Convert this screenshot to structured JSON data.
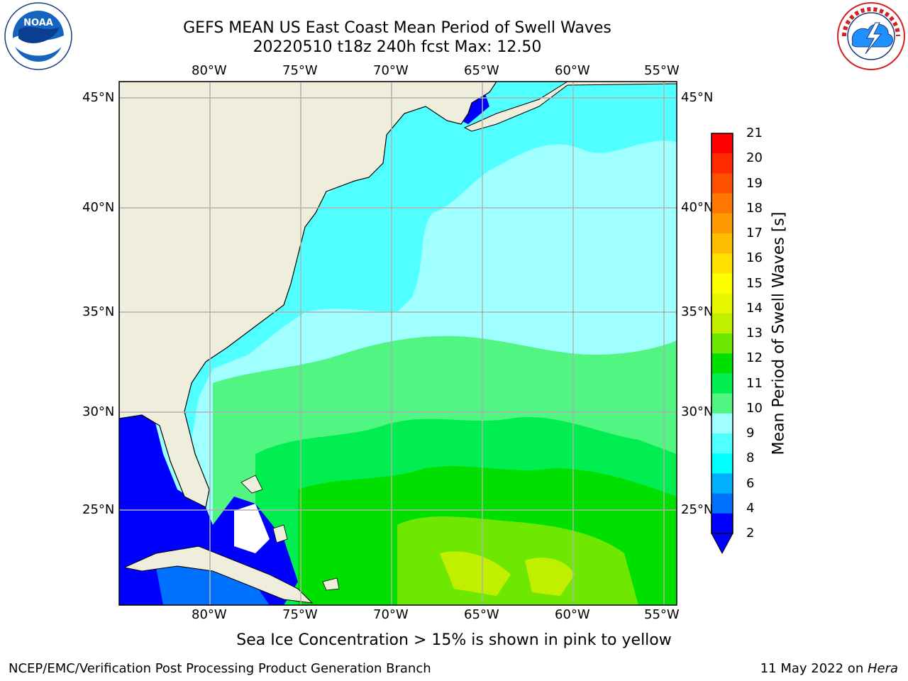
{
  "header": {
    "title_line1": "GEFS MEAN US East Coast Mean Period of Swell Waves",
    "title_line2": "20220510 t18z 240h fcst   Max: 12.50",
    "left_logo": {
      "icon": "noaa-logo-icon",
      "text": "NOAA"
    },
    "right_logo": {
      "icon": "nws-logo-icon",
      "text": "NATIONAL WEATHER SERVICE"
    }
  },
  "map": {
    "lon_labels": [
      "80°W",
      "75°W",
      "70°W",
      "65°W",
      "60°W",
      "55°W"
    ],
    "lat_labels": [
      "45°N",
      "40°N",
      "35°N",
      "30°N",
      "25°N"
    ],
    "colors": {
      "land": "#efeedc",
      "coast": "#000000",
      "grid": "#b0b0b0",
      "white_region": "#ffffff"
    }
  },
  "colorbar": {
    "label": "Mean Period of Swell Waves [s]",
    "ticks": [
      "21",
      "20",
      "19",
      "18",
      "17",
      "16",
      "15",
      "14",
      "13",
      "12",
      "11",
      "10",
      "9",
      "8",
      "6",
      "4",
      "2"
    ],
    "colors_top_to_bottom": [
      "#ff0000",
      "#ff2a00",
      "#ff5000",
      "#ff7800",
      "#ff9a00",
      "#ffbe00",
      "#ffe000",
      "#ffff00",
      "#e6f500",
      "#c0f000",
      "#6ee800",
      "#00e000",
      "#00ee50",
      "#50f582",
      "#a0ffff",
      "#50ffff",
      "#00ffff",
      "#00b0ff",
      "#0070ff",
      "#0000ff"
    ]
  },
  "caption": "Sea Ice Concentration > 15% is shown in pink to yellow",
  "footer": {
    "left": "NCEP/EMC/Verification Post Processing Product Generation Branch",
    "right_prefix": "11 May 2022 on ",
    "right_host": "Hera"
  }
}
